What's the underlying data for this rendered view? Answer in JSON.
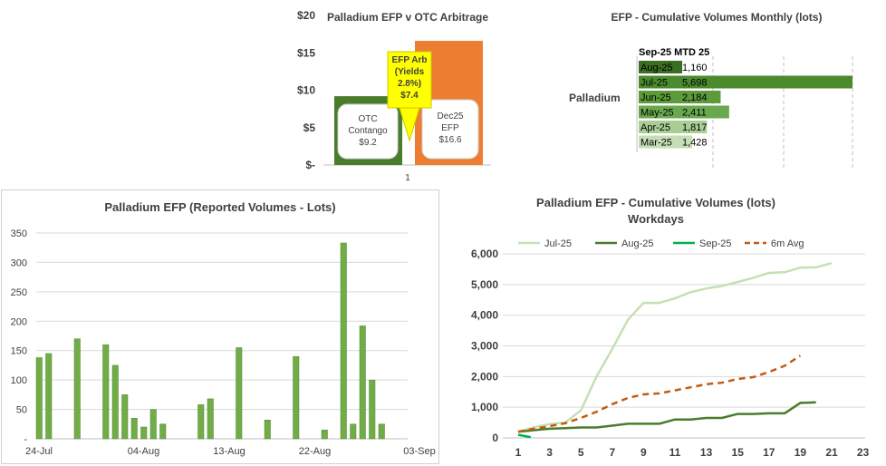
{
  "chart_data": [
    {
      "type": "bar",
      "title": "Palladium EFP v OTC Arbitrage",
      "categories": [
        "1"
      ],
      "y_ticks": [
        "$20",
        "$15",
        "$10",
        "$5",
        "$-"
      ],
      "ylim": [
        0,
        20
      ],
      "series": [
        {
          "values": [
            9.2
          ],
          "color": "#4a7c2c"
        },
        {
          "values": [
            16.6
          ],
          "color": "#ed7d31"
        }
      ],
      "annotations": {
        "otc": [
          "OTC",
          "Contango",
          "$9.2"
        ],
        "efp": [
          "Dec25",
          "EFP",
          "$16.6"
        ],
        "arb": [
          "EFP Arb",
          "(Yields",
          "2.8%)",
          "$7.4"
        ]
      }
    },
    {
      "type": "bar",
      "orientation": "horizontal",
      "title": "EFP - Cumulative Volumes Monthly (lots)",
      "group_label": "Palladium",
      "header": "Sep-25 MTD  25",
      "categories": [
        "Aug-25",
        "Jul-25",
        "Jun-25",
        "May-25",
        "Apr-25",
        "Mar-25"
      ],
      "values": [
        1160,
        5698,
        2184,
        2411,
        1817,
        1428
      ],
      "value_labels": [
        "1,160",
        "5,698",
        "2,184",
        "2,411",
        "1,817",
        "1,428"
      ],
      "colors": [
        "#3b6e22",
        "#4c8a2e",
        "#5c9a3a",
        "#6aa84f",
        "#a9cd94",
        "#c5deb6"
      ]
    },
    {
      "type": "bar",
      "title": "Palladium EFP (Reported Volumes - Lots)",
      "ylim": [
        0,
        350
      ],
      "y_ticks": [
        "350",
        "300",
        "250",
        "200",
        "150",
        "100",
        "50",
        "-"
      ],
      "x_ticks": [
        "24-Jul",
        "04-Aug",
        "13-Aug",
        "22-Aug",
        "03-Sep"
      ],
      "day_range": [
        0,
        43
      ],
      "points": [
        {
          "day": 0,
          "value": 138
        },
        {
          "day": 1,
          "value": 145
        },
        {
          "day": 4,
          "value": 170
        },
        {
          "day": 7,
          "value": 160
        },
        {
          "day": 8,
          "value": 125
        },
        {
          "day": 9,
          "value": 75
        },
        {
          "day": 10,
          "value": 35
        },
        {
          "day": 11,
          "value": 20
        },
        {
          "day": 12,
          "value": 50
        },
        {
          "day": 13,
          "value": 25
        },
        {
          "day": 17,
          "value": 58
        },
        {
          "day": 18,
          "value": 68
        },
        {
          "day": 21,
          "value": 155
        },
        {
          "day": 24,
          "value": 32
        },
        {
          "day": 27,
          "value": 140
        },
        {
          "day": 30,
          "value": 15
        },
        {
          "day": 32,
          "value": 333
        },
        {
          "day": 33,
          "value": 25
        },
        {
          "day": 34,
          "value": 192
        },
        {
          "day": 35,
          "value": 100
        },
        {
          "day": 36,
          "value": 25
        }
      ]
    },
    {
      "type": "line",
      "title": [
        "Palladium EFP - Cumulative Volumes (lots)",
        "Workdays"
      ],
      "xlim": [
        1,
        23
      ],
      "x_ticks": [
        "1",
        "3",
        "5",
        "7",
        "9",
        "11",
        "13",
        "15",
        "17",
        "19",
        "21",
        "23"
      ],
      "ylim": [
        0,
        6000
      ],
      "y_ticks": [
        "6,000",
        "5,000",
        "4,000",
        "3,000",
        "2,000",
        "1,000",
        "0"
      ],
      "series": [
        {
          "name": "Jul-25",
          "color": "#c5e0b4",
          "dash": false,
          "x": [
            1,
            2,
            3,
            4,
            5,
            6,
            7,
            8,
            9,
            10,
            11,
            12,
            13,
            14,
            15,
            16,
            17,
            18,
            19,
            20,
            21
          ],
          "y": [
            200,
            350,
            450,
            500,
            900,
            2000,
            2900,
            3850,
            4400,
            4400,
            4550,
            4750,
            4870,
            4950,
            5080,
            5220,
            5380,
            5400,
            5550,
            5560,
            5698
          ]
        },
        {
          "name": "Aug-25",
          "color": "#4a7c2c",
          "dash": false,
          "x": [
            1,
            2,
            3,
            4,
            5,
            6,
            7,
            8,
            9,
            10,
            11,
            12,
            13,
            14,
            15,
            16,
            17,
            18,
            19,
            20
          ],
          "y": [
            200,
            250,
            300,
            320,
            340,
            340,
            400,
            460,
            460,
            460,
            600,
            600,
            650,
            650,
            780,
            780,
            800,
            800,
            1140,
            1160
          ]
        },
        {
          "name": "Sep-25",
          "color": "#00b050",
          "dash": false,
          "x": [
            1,
            1.8
          ],
          "y": [
            100,
            25
          ]
        },
        {
          "name": "6m Avg",
          "color": "#c55a11",
          "dash": true,
          "x": [
            1,
            2,
            3,
            4,
            5,
            6,
            7,
            8,
            9,
            10,
            11,
            12,
            13,
            14,
            15,
            16,
            17,
            18,
            19
          ],
          "y": [
            200,
            300,
            380,
            480,
            650,
            850,
            1100,
            1300,
            1420,
            1450,
            1550,
            1650,
            1750,
            1800,
            1920,
            1980,
            2150,
            2350,
            2680
          ]
        }
      ]
    }
  ]
}
